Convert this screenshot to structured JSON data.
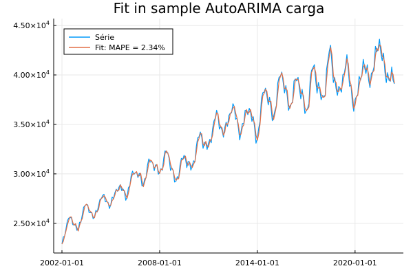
{
  "chart_data": {
    "type": "line",
    "title": "Fit in sample AutoARIMA carga",
    "xlabel": "",
    "ylabel": "",
    "x_start": "2002-01",
    "x_end": "2022-06",
    "x_ticks": [
      "2002-01-01",
      "2008-01-01",
      "2014-01-01",
      "2020-01-01"
    ],
    "y_ticks": [
      25000,
      30000,
      35000,
      40000,
      45000
    ],
    "y_tick_labels": [
      {
        "mantissa": "2.50",
        "exp": "4"
      },
      {
        "mantissa": "3.00",
        "exp": "4"
      },
      {
        "mantissa": "3.50",
        "exp": "4"
      },
      {
        "mantissa": "4.00",
        "exp": "4"
      },
      {
        "mantissa": "4.50",
        "exp": "4"
      }
    ],
    "ylim": [
      22000,
      45700
    ],
    "grid": true,
    "legend_position": "top-left",
    "series": [
      {
        "name": "Série",
        "color": "#009AFA",
        "anchors": [
          [
            "2002-01",
            22800
          ],
          [
            "2002-06",
            25700
          ],
          [
            "2003-01",
            24300
          ],
          [
            "2003-06",
            27000
          ],
          [
            "2004-01",
            25500
          ],
          [
            "2004-06",
            27800
          ],
          [
            "2005-01",
            26800
          ],
          [
            "2005-06",
            28800
          ],
          [
            "2006-01",
            27800
          ],
          [
            "2006-06",
            30500
          ],
          [
            "2007-01",
            29000
          ],
          [
            "2007-06",
            31500
          ],
          [
            "2008-01",
            30000
          ],
          [
            "2008-06",
            32400
          ],
          [
            "2009-01",
            29000
          ],
          [
            "2009-06",
            31800
          ],
          [
            "2010-01",
            30500
          ],
          [
            "2010-06",
            34000
          ],
          [
            "2011-01",
            32500
          ],
          [
            "2011-06",
            36000
          ],
          [
            "2012-01",
            34000
          ],
          [
            "2012-06",
            37000
          ],
          [
            "2013-01",
            34000
          ],
          [
            "2013-06",
            37000
          ],
          [
            "2014-01",
            33500
          ],
          [
            "2014-06",
            39000
          ],
          [
            "2015-01",
            35500
          ],
          [
            "2015-06",
            40500
          ],
          [
            "2016-01",
            36500
          ],
          [
            "2016-06",
            40000
          ],
          [
            "2017-01",
            36000
          ],
          [
            "2017-06",
            41000
          ],
          [
            "2018-01",
            37000
          ],
          [
            "2018-06",
            42500
          ],
          [
            "2019-01",
            37500
          ],
          [
            "2019-06",
            41500
          ],
          [
            "2020-01",
            36500
          ],
          [
            "2020-06",
            41000
          ],
          [
            "2021-01",
            39500
          ],
          [
            "2021-06",
            43500
          ],
          [
            "2022-01",
            39500
          ],
          [
            "2022-06",
            40000
          ]
        ]
      },
      {
        "name": "Fit: MAPE = 2.34%",
        "color": "#E26F46",
        "anchors": []
      }
    ]
  }
}
